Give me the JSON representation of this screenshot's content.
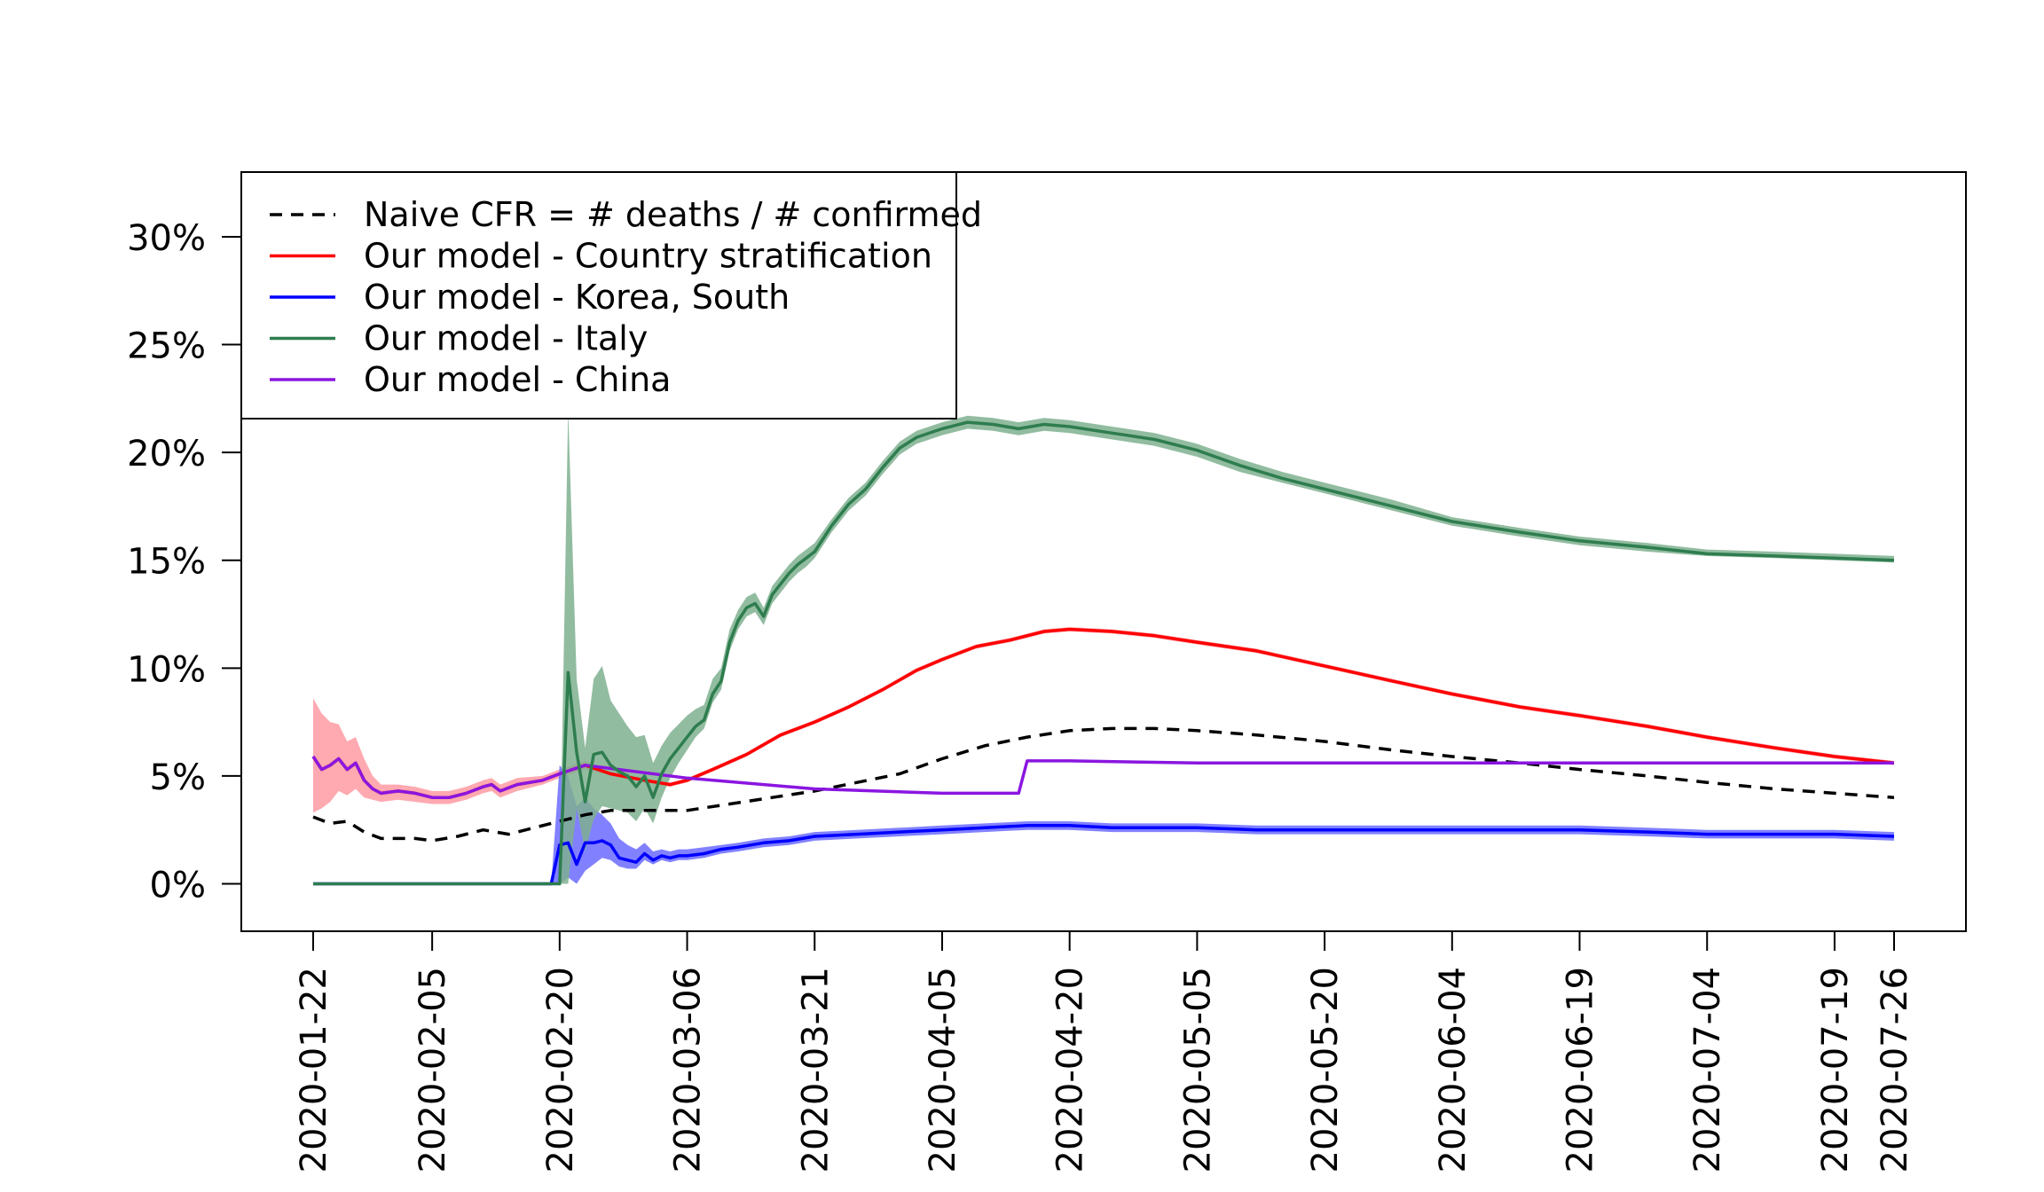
{
  "chart_data": {
    "type": "line",
    "title": "",
    "xlabel": "",
    "ylabel": "",
    "x_type": "date",
    "xlim": [
      "2020-01-22",
      "2020-07-26"
    ],
    "ylim": [
      -2.2,
      33
    ],
    "y_ticks": [
      0,
      5,
      10,
      15,
      20,
      25,
      30
    ],
    "y_tick_labels": [
      "0%",
      "5%",
      "10%",
      "15%",
      "20%",
      "25%",
      "30%"
    ],
    "x_ticks": [
      "2020-01-22",
      "2020-02-05",
      "2020-02-20",
      "2020-03-06",
      "2020-03-21",
      "2020-04-05",
      "2020-04-20",
      "2020-05-05",
      "2020-05-20",
      "2020-06-04",
      "2020-06-19",
      "2020-07-04",
      "2020-07-19",
      "2020-07-26"
    ],
    "grid": false,
    "legend_position": "top-left",
    "series": [
      {
        "name": "Naive CFR = # deaths / # confirmed",
        "color": "#000000",
        "dash": "dashed",
        "x": [
          "2020-01-22",
          "2020-01-24",
          "2020-01-26",
          "2020-01-28",
          "2020-01-30",
          "2020-02-01",
          "2020-02-03",
          "2020-02-05",
          "2020-02-08",
          "2020-02-11",
          "2020-02-14",
          "2020-02-17",
          "2020-02-20",
          "2020-02-23",
          "2020-02-26",
          "2020-03-01",
          "2020-03-06",
          "2020-03-11",
          "2020-03-16",
          "2020-03-21",
          "2020-03-26",
          "2020-03-31",
          "2020-04-05",
          "2020-04-10",
          "2020-04-15",
          "2020-04-20",
          "2020-04-25",
          "2020-04-30",
          "2020-05-05",
          "2020-05-12",
          "2020-05-20",
          "2020-05-28",
          "2020-06-04",
          "2020-06-12",
          "2020-06-19",
          "2020-06-27",
          "2020-07-04",
          "2020-07-12",
          "2020-07-19",
          "2020-07-26"
        ],
        "values": [
          3.1,
          2.8,
          2.9,
          2.4,
          2.1,
          2.1,
          2.1,
          2.0,
          2.2,
          2.5,
          2.3,
          2.6,
          2.9,
          3.2,
          3.4,
          3.4,
          3.4,
          3.7,
          4.0,
          4.3,
          4.7,
          5.1,
          5.8,
          6.4,
          6.8,
          7.1,
          7.2,
          7.2,
          7.1,
          6.9,
          6.6,
          6.2,
          5.9,
          5.6,
          5.3,
          5.0,
          4.7,
          4.4,
          4.2,
          4.0
        ]
      },
      {
        "name": "Our model - Country stratification",
        "color": "#ff0000",
        "dash": "solid",
        "x": [
          "2020-01-22",
          "2020-01-23",
          "2020-01-24",
          "2020-01-25",
          "2020-01-26",
          "2020-01-27",
          "2020-01-28",
          "2020-01-29",
          "2020-01-30",
          "2020-02-01",
          "2020-02-03",
          "2020-02-05",
          "2020-02-07",
          "2020-02-09",
          "2020-02-11",
          "2020-02-12",
          "2020-02-13",
          "2020-02-15",
          "2020-02-18",
          "2020-02-20",
          "2020-02-23",
          "2020-02-26",
          "2020-03-01",
          "2020-03-04",
          "2020-03-06",
          "2020-03-09",
          "2020-03-13",
          "2020-03-17",
          "2020-03-21",
          "2020-03-25",
          "2020-03-29",
          "2020-04-02",
          "2020-04-05",
          "2020-04-09",
          "2020-04-13",
          "2020-04-17",
          "2020-04-20",
          "2020-04-25",
          "2020-04-30",
          "2020-05-05",
          "2020-05-12",
          "2020-05-20",
          "2020-05-28",
          "2020-06-04",
          "2020-06-12",
          "2020-06-19",
          "2020-06-27",
          "2020-07-04",
          "2020-07-12",
          "2020-07-19",
          "2020-07-26"
        ],
        "values": [
          5.9,
          5.3,
          5.5,
          5.8,
          5.3,
          5.6,
          4.8,
          4.4,
          4.2,
          4.3,
          4.2,
          4.0,
          4.0,
          4.2,
          4.5,
          4.6,
          4.3,
          4.6,
          4.8,
          5.1,
          5.5,
          5.1,
          4.8,
          4.6,
          4.8,
          5.3,
          6.0,
          6.9,
          7.5,
          8.2,
          9.0,
          9.9,
          10.4,
          11.0,
          11.3,
          11.7,
          11.8,
          11.7,
          11.5,
          11.2,
          10.8,
          10.1,
          9.4,
          8.8,
          8.2,
          7.8,
          7.3,
          6.8,
          6.3,
          5.9,
          5.6
        ],
        "lower": [
          3.3,
          3.5,
          3.8,
          4.3,
          4.1,
          4.4,
          4.0,
          3.9,
          3.8,
          3.9,
          3.8,
          3.7,
          3.7,
          3.9,
          4.2,
          4.3,
          4.0,
          4.3,
          4.6,
          4.9,
          5.3,
          5.0,
          4.7,
          4.5,
          4.7,
          5.2,
          5.9,
          6.8,
          7.4,
          8.1,
          8.9,
          9.8,
          10.3,
          10.9,
          11.2,
          11.6,
          11.7,
          11.6,
          11.4,
          11.1,
          10.7,
          10.0,
          9.3,
          8.7,
          8.1,
          7.7,
          7.2,
          6.7,
          6.2,
          5.8,
          5.5
        ],
        "upper": [
          8.6,
          7.9,
          7.5,
          7.4,
          6.6,
          6.8,
          5.8,
          5.0,
          4.6,
          4.6,
          4.5,
          4.3,
          4.3,
          4.5,
          4.8,
          4.9,
          4.6,
          4.9,
          5.0,
          5.3,
          5.7,
          5.2,
          4.9,
          4.7,
          4.9,
          5.4,
          6.1,
          7.0,
          7.6,
          8.3,
          9.1,
          10.0,
          10.5,
          11.1,
          11.4,
          11.8,
          11.9,
          11.8,
          11.6,
          11.3,
          10.9,
          10.2,
          9.5,
          8.9,
          8.3,
          7.9,
          7.4,
          6.9,
          6.4,
          6.0,
          5.7
        ],
        "band_color": "#ff9aa2"
      },
      {
        "name": "Our model - Korea, South",
        "color": "#0000ff",
        "dash": "solid",
        "x": [
          "2020-01-22",
          "2020-02-19",
          "2020-02-20",
          "2020-02-21",
          "2020-02-22",
          "2020-02-23",
          "2020-02-24",
          "2020-02-25",
          "2020-02-26",
          "2020-02-27",
          "2020-02-28",
          "2020-02-29",
          "2020-03-01",
          "2020-03-02",
          "2020-03-03",
          "2020-03-04",
          "2020-03-05",
          "2020-03-06",
          "2020-03-08",
          "2020-03-10",
          "2020-03-12",
          "2020-03-15",
          "2020-03-18",
          "2020-03-21",
          "2020-03-26",
          "2020-03-31",
          "2020-04-05",
          "2020-04-10",
          "2020-04-15",
          "2020-04-20",
          "2020-04-25",
          "2020-04-30",
          "2020-05-05",
          "2020-05-12",
          "2020-05-20",
          "2020-05-28",
          "2020-06-04",
          "2020-06-12",
          "2020-06-19",
          "2020-06-27",
          "2020-07-04",
          "2020-07-12",
          "2020-07-19",
          "2020-07-26"
        ],
        "values": [
          0,
          0,
          1.8,
          1.9,
          0.9,
          1.9,
          1.9,
          2.0,
          1.8,
          1.2,
          1.1,
          1.0,
          1.4,
          1.1,
          1.3,
          1.2,
          1.3,
          1.3,
          1.4,
          1.6,
          1.7,
          1.9,
          2.0,
          2.2,
          2.3,
          2.4,
          2.5,
          2.6,
          2.7,
          2.7,
          2.6,
          2.6,
          2.6,
          2.5,
          2.5,
          2.5,
          2.5,
          2.5,
          2.5,
          2.4,
          2.3,
          2.3,
          2.3,
          2.2
        ],
        "lower": [
          0,
          0,
          0,
          0.3,
          0,
          0.6,
          0.9,
          1.2,
          1.1,
          0.8,
          0.7,
          0.7,
          1.1,
          0.9,
          1.1,
          1.0,
          1.1,
          1.1,
          1.2,
          1.4,
          1.5,
          1.7,
          1.8,
          2.0,
          2.1,
          2.2,
          2.3,
          2.4,
          2.5,
          2.5,
          2.4,
          2.4,
          2.4,
          2.3,
          2.3,
          2.3,
          2.3,
          2.3,
          2.3,
          2.2,
          2.1,
          2.1,
          2.1,
          2.0
        ],
        "upper": [
          0,
          0,
          5.5,
          5.0,
          3.6,
          4.0,
          3.5,
          3.2,
          2.8,
          2.1,
          1.8,
          1.6,
          1.9,
          1.5,
          1.6,
          1.5,
          1.6,
          1.6,
          1.7,
          1.8,
          1.9,
          2.1,
          2.2,
          2.4,
          2.5,
          2.6,
          2.7,
          2.8,
          2.9,
          2.9,
          2.8,
          2.8,
          2.8,
          2.7,
          2.7,
          2.7,
          2.7,
          2.7,
          2.7,
          2.6,
          2.5,
          2.5,
          2.5,
          2.4
        ],
        "band_color": "#6b6bff"
      },
      {
        "name": "Our model - Italy",
        "color": "#2e7d4f",
        "dash": "solid",
        "x": [
          "2020-01-22",
          "2020-02-20",
          "2020-02-21",
          "2020-02-22",
          "2020-02-23",
          "2020-02-24",
          "2020-02-25",
          "2020-02-26",
          "2020-02-27",
          "2020-02-28",
          "2020-02-29",
          "2020-03-01",
          "2020-03-02",
          "2020-03-03",
          "2020-03-04",
          "2020-03-05",
          "2020-03-06",
          "2020-03-07",
          "2020-03-08",
          "2020-03-09",
          "2020-03-10",
          "2020-03-11",
          "2020-03-12",
          "2020-03-13",
          "2020-03-14",
          "2020-03-15",
          "2020-03-16",
          "2020-03-17",
          "2020-03-18",
          "2020-03-19",
          "2020-03-20",
          "2020-03-21",
          "2020-03-23",
          "2020-03-25",
          "2020-03-27",
          "2020-03-29",
          "2020-03-31",
          "2020-04-02",
          "2020-04-05",
          "2020-04-08",
          "2020-04-11",
          "2020-04-14",
          "2020-04-17",
          "2020-04-20",
          "2020-04-25",
          "2020-04-30",
          "2020-05-05",
          "2020-05-10",
          "2020-05-15",
          "2020-05-20",
          "2020-05-28",
          "2020-06-04",
          "2020-06-12",
          "2020-06-19",
          "2020-06-27",
          "2020-07-04",
          "2020-07-12",
          "2020-07-19",
          "2020-07-26"
        ],
        "values": [
          0,
          0,
          9.8,
          6.1,
          3.8,
          6.0,
          6.1,
          5.5,
          5.2,
          5.0,
          4.5,
          5.0,
          4.0,
          5.1,
          5.8,
          6.3,
          6.8,
          7.3,
          7.6,
          8.8,
          9.4,
          11.2,
          12.2,
          12.8,
          13.0,
          12.4,
          13.4,
          13.9,
          14.4,
          14.8,
          15.1,
          15.4,
          16.6,
          17.6,
          18.3,
          19.3,
          20.2,
          20.7,
          21.1,
          21.4,
          21.3,
          21.1,
          21.3,
          21.2,
          20.9,
          20.6,
          20.1,
          19.4,
          18.8,
          18.3,
          17.5,
          16.8,
          16.3,
          15.9,
          15.6,
          15.3,
          15.2,
          15.1,
          15.0
        ],
        "lower": [
          0,
          0,
          0,
          3.5,
          1.5,
          3.0,
          3.6,
          3.5,
          3.4,
          3.3,
          2.9,
          3.5,
          2.8,
          4.0,
          4.9,
          5.6,
          6.2,
          6.8,
          7.2,
          8.4,
          9.0,
          10.8,
          11.8,
          12.4,
          12.6,
          12.0,
          13.0,
          13.5,
          14.0,
          14.4,
          14.7,
          15.1,
          16.3,
          17.3,
          18.0,
          19.0,
          19.9,
          20.4,
          20.8,
          21.1,
          21.0,
          20.8,
          21.0,
          20.9,
          20.6,
          20.3,
          19.8,
          19.1,
          18.6,
          18.1,
          17.3,
          16.6,
          16.1,
          15.7,
          15.4,
          15.2,
          15.1,
          15.0,
          14.9
        ],
        "upper": [
          0,
          0,
          22.0,
          9.5,
          6.3,
          9.5,
          10.1,
          8.5,
          7.9,
          7.3,
          6.8,
          6.9,
          5.6,
          6.4,
          7.0,
          7.4,
          7.8,
          8.1,
          8.3,
          9.5,
          10.0,
          11.8,
          12.7,
          13.3,
          13.5,
          12.8,
          13.8,
          14.3,
          14.8,
          15.2,
          15.5,
          15.8,
          16.9,
          17.9,
          18.6,
          19.6,
          20.5,
          21.0,
          21.4,
          21.7,
          21.6,
          21.4,
          21.6,
          21.5,
          21.2,
          20.9,
          20.4,
          19.7,
          19.1,
          18.6,
          17.8,
          17.0,
          16.5,
          16.1,
          15.8,
          15.5,
          15.4,
          15.3,
          15.2
        ],
        "band_color": "#7fb08f"
      },
      {
        "name": "Our model - China",
        "color": "#8a16e0",
        "dash": "solid",
        "x": [
          "2020-01-22",
          "2020-01-23",
          "2020-01-24",
          "2020-01-25",
          "2020-01-26",
          "2020-01-27",
          "2020-01-28",
          "2020-01-29",
          "2020-01-30",
          "2020-02-01",
          "2020-02-03",
          "2020-02-05",
          "2020-02-07",
          "2020-02-09",
          "2020-02-11",
          "2020-02-12",
          "2020-02-13",
          "2020-02-15",
          "2020-02-18",
          "2020-02-20",
          "2020-02-23",
          "2020-03-06",
          "2020-03-21",
          "2020-04-05",
          "2020-04-14",
          "2020-04-15",
          "2020-04-20",
          "2020-05-05",
          "2020-06-04",
          "2020-07-04",
          "2020-07-26"
        ],
        "values": [
          5.9,
          5.3,
          5.5,
          5.8,
          5.3,
          5.6,
          4.8,
          4.4,
          4.2,
          4.3,
          4.2,
          4.0,
          4.0,
          4.2,
          4.5,
          4.6,
          4.3,
          4.6,
          4.8,
          5.1,
          5.5,
          4.9,
          4.4,
          4.2,
          4.2,
          5.7,
          5.7,
          5.6,
          5.6,
          5.6,
          5.6
        ]
      }
    ]
  }
}
